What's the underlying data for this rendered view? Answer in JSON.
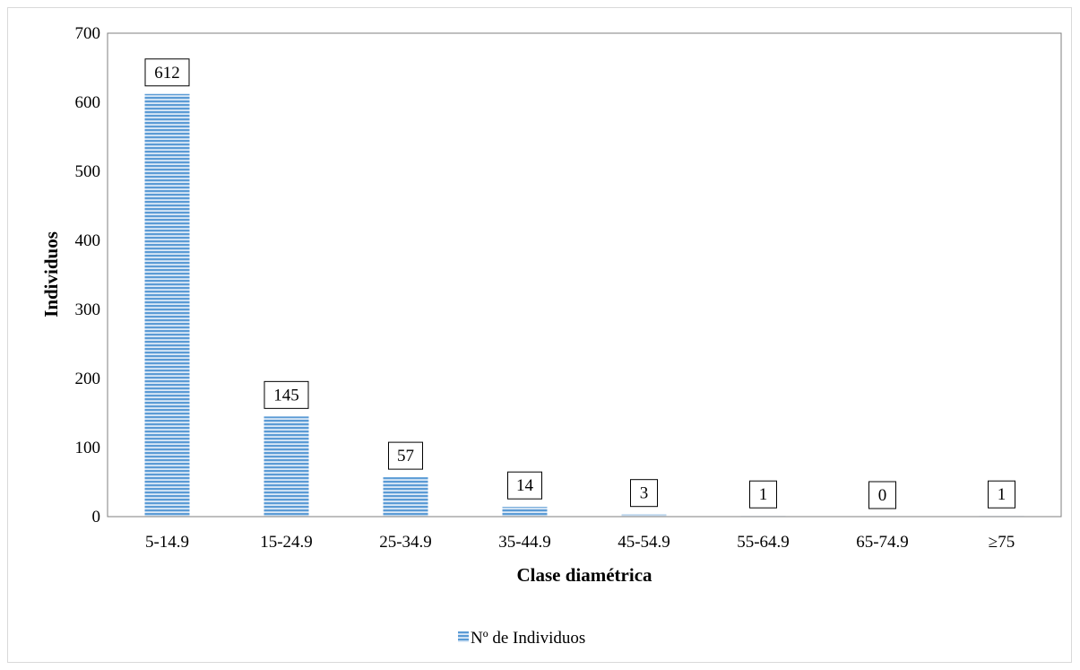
{
  "chart_data": {
    "type": "bar",
    "title": "",
    "xlabel": "Clase diamétrica",
    "ylabel": "Individuos",
    "ylim": [
      0,
      700
    ],
    "yticks": [
      0,
      100,
      200,
      300,
      400,
      500,
      600,
      700
    ],
    "categories": [
      "5-14.9",
      "15-24.9",
      "25-34.9",
      "35-44.9",
      "45-54.9",
      "55-64.9",
      "65-74.9",
      "≥75"
    ],
    "series": [
      {
        "name": "Nº de Individuos",
        "values": [
          612,
          145,
          57,
          14,
          3,
          1,
          0,
          1
        ],
        "color": "#5b9bd5"
      }
    ],
    "data_labels": [
      "612",
      "145",
      "57",
      "14",
      "3",
      "1",
      "0",
      "1"
    ],
    "legend_position": "bottom",
    "grid": false
  }
}
